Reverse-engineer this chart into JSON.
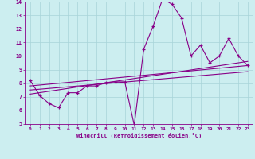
{
  "xlabel": "Windchill (Refroidissement éolien,°C)",
  "background_color": "#cceef0",
  "grid_color": "#a8d4d8",
  "line_color": "#880088",
  "xlim": [
    -0.5,
    23.5
  ],
  "ylim": [
    5,
    14
  ],
  "xticks": [
    0,
    1,
    2,
    3,
    4,
    5,
    6,
    7,
    8,
    9,
    10,
    11,
    12,
    13,
    14,
    15,
    16,
    17,
    18,
    19,
    20,
    21,
    22,
    23
  ],
  "yticks": [
    5,
    6,
    7,
    8,
    9,
    10,
    11,
    12,
    13,
    14
  ],
  "series1_x": [
    0,
    1,
    2,
    3,
    4,
    5,
    6,
    7,
    8,
    9,
    10,
    11,
    12,
    13,
    14,
    15,
    16,
    17,
    18,
    19,
    20,
    21,
    22,
    23
  ],
  "series1_y": [
    8.2,
    7.1,
    6.5,
    6.2,
    7.3,
    7.3,
    7.8,
    7.8,
    8.05,
    8.1,
    8.1,
    4.9,
    10.5,
    12.2,
    14.2,
    13.8,
    12.8,
    10.0,
    10.8,
    9.5,
    10.0,
    11.3,
    10.0,
    9.3
  ],
  "series2_x": [
    0,
    23
  ],
  "series2_y": [
    7.8,
    9.3
  ],
  "series3_x": [
    0,
    23
  ],
  "series3_y": [
    7.2,
    9.6
  ],
  "series4_x": [
    0,
    23
  ],
  "series4_y": [
    7.5,
    8.85
  ]
}
